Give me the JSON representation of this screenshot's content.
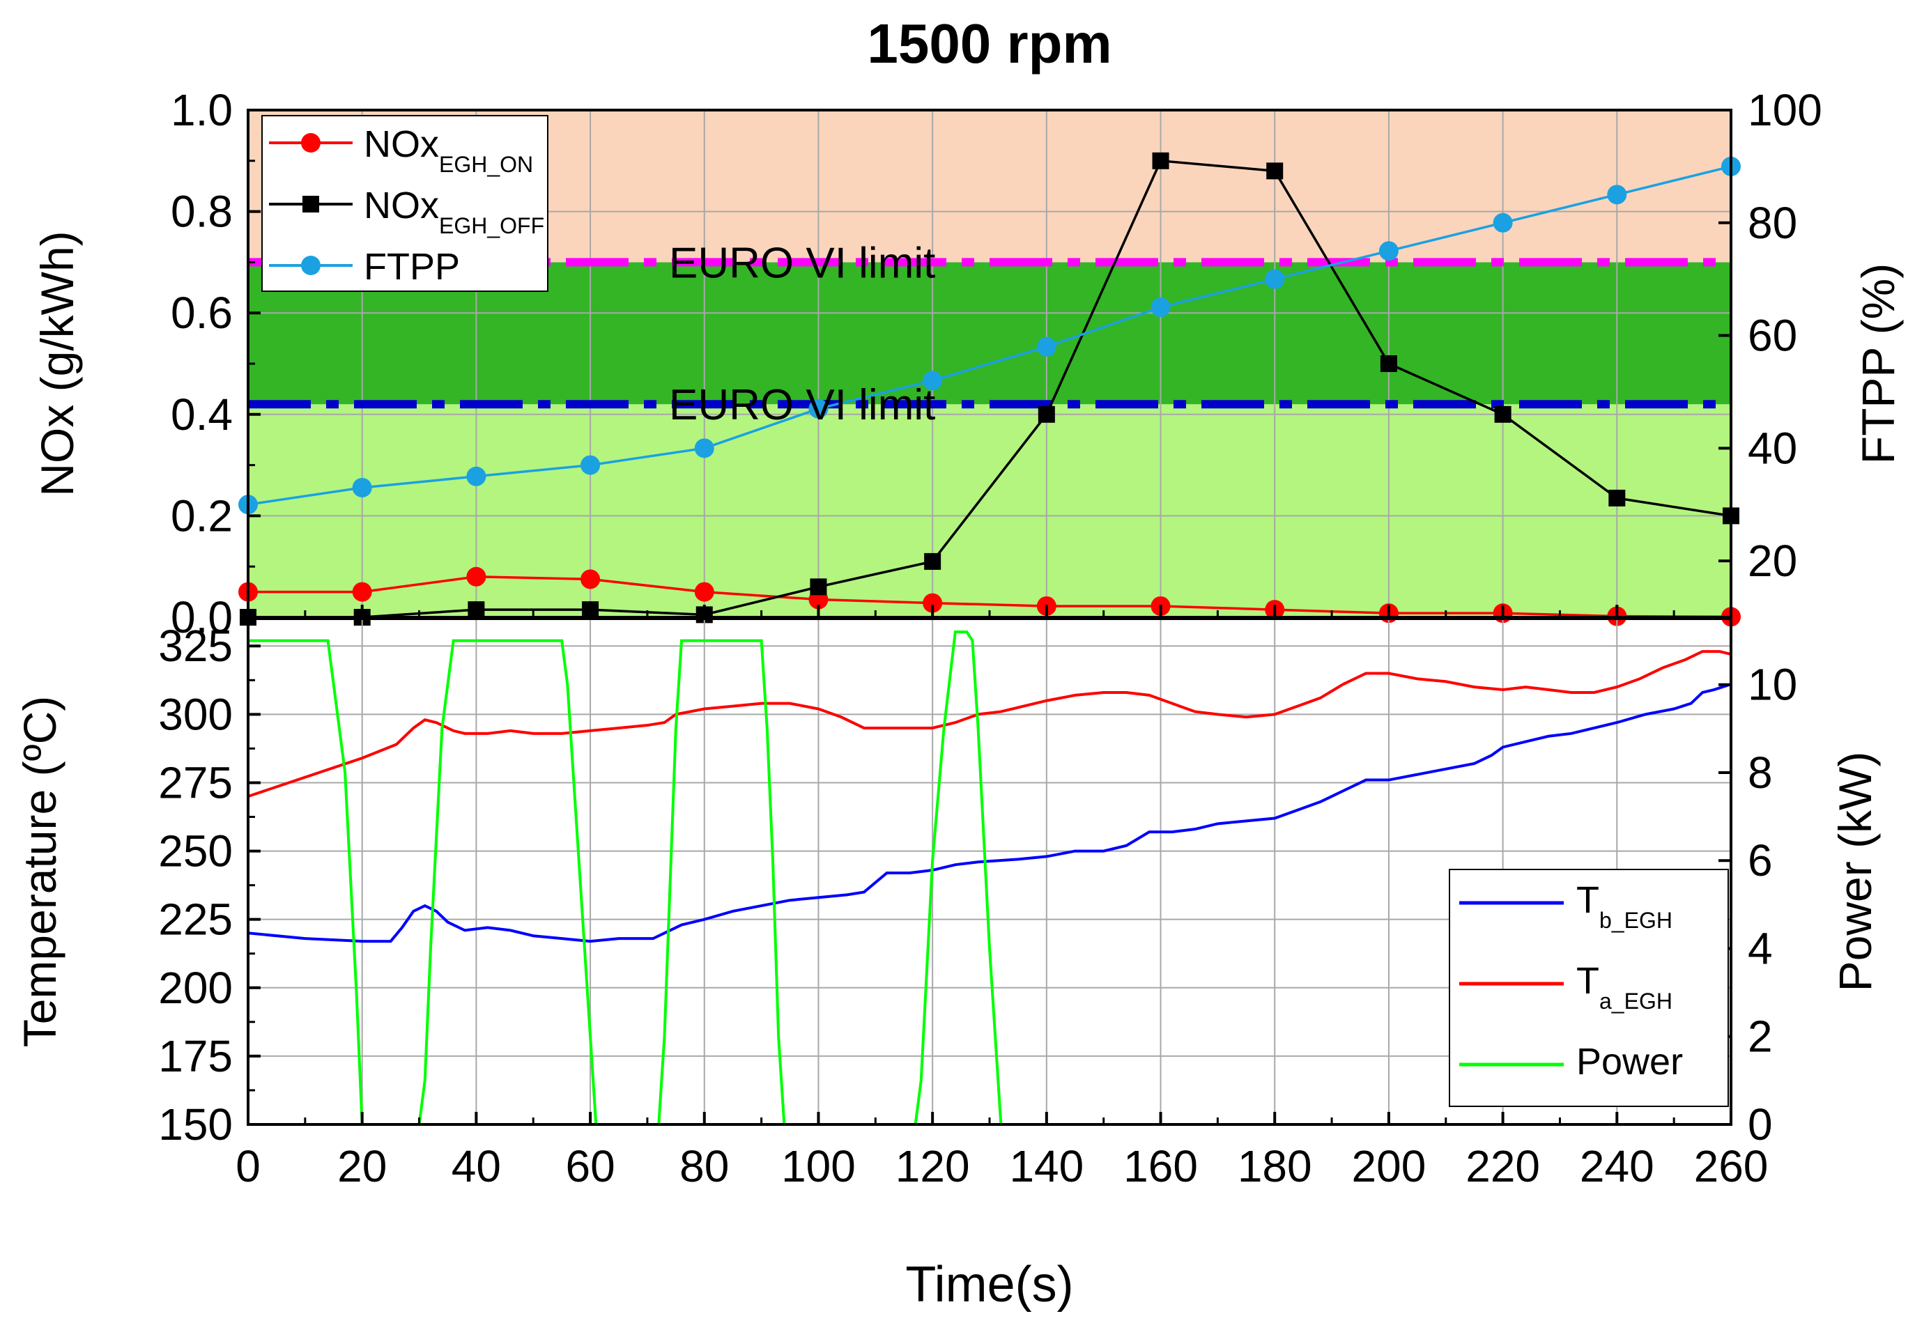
{
  "title": "1500 rpm",
  "x_axis": {
    "label": "Time(s)",
    "range": [
      0,
      260
    ],
    "ticks": [
      0,
      20,
      40,
      60,
      80,
      100,
      120,
      140,
      160,
      180,
      200,
      220,
      240,
      260
    ]
  },
  "chart_data": [
    {
      "type": "line",
      "panel": "top",
      "x": [
        0,
        20,
        40,
        60,
        80,
        100,
        120,
        140,
        160,
        180,
        200,
        220,
        240,
        260
      ],
      "left_axis": {
        "label": "NOx (g/kWh)",
        "range": [
          0,
          1.0
        ],
        "ticks": [
          0.0,
          0.2,
          0.4,
          0.6,
          0.8,
          1.0
        ],
        "tick_labels": [
          "0.0",
          "0.2",
          "0.4",
          "0.6",
          "0.8",
          "1.0"
        ]
      },
      "right_axis": {
        "label": "FTPP (%)",
        "range": [
          10,
          100
        ],
        "ticks": [
          20,
          40,
          60,
          80,
          100
        ]
      },
      "series": [
        {
          "name_main": "NOx",
          "name_sub": "EGH_ON",
          "axis": "left",
          "marker": "circle",
          "color": "#ff0000",
          "values": [
            0.05,
            0.05,
            0.08,
            0.075,
            0.05,
            0.035,
            0.028,
            0.022,
            0.022,
            0.015,
            0.008,
            0.008,
            0.002,
            0.001
          ]
        },
        {
          "name_main": "NOx",
          "name_sub": "EGH_OFF",
          "axis": "left",
          "marker": "square",
          "color": "#000000",
          "values": [
            0.0,
            0.0,
            0.015,
            0.015,
            0.005,
            0.06,
            0.11,
            0.4,
            0.9,
            0.88,
            0.5,
            0.4,
            0.235,
            0.2
          ]
        },
        {
          "name_main": "FTPP",
          "name_sub": "",
          "axis": "right",
          "marker": "circle",
          "color": "#1ba1e2",
          "values": [
            30,
            33,
            35,
            37,
            40,
            47,
            52,
            58,
            65,
            70,
            75,
            80,
            85,
            90
          ]
        }
      ],
      "limits": [
        {
          "label": "EURO VI limit",
          "value": 0.7,
          "color": "#ff00ff"
        },
        {
          "label": "EURO VI limit",
          "value": 0.42,
          "color": "#0000cc"
        }
      ],
      "bands": [
        {
          "from": 0.0,
          "to": 0.42,
          "color": "#b3f57f"
        },
        {
          "from": 0.42,
          "to": 0.7,
          "color": "#33b526"
        },
        {
          "from": 0.7,
          "to": 1.0,
          "color": "#fad5bc"
        }
      ]
    },
    {
      "type": "line",
      "panel": "bottom",
      "left_axis": {
        "label": "Temperature (ºC)",
        "range": [
          150,
          335
        ],
        "ticks": [
          150,
          175,
          200,
          225,
          250,
          275,
          300,
          325
        ]
      },
      "right_axis": {
        "label": "Power (kW)",
        "range": [
          0,
          11.5
        ],
        "ticks": [
          0,
          2,
          4,
          6,
          8,
          10
        ]
      },
      "series": [
        {
          "name_main": "T",
          "name_sub": "b_EGH",
          "axis": "left",
          "color": "#0000ff",
          "points": [
            [
              0,
              220
            ],
            [
              10,
              218
            ],
            [
              20,
              217
            ],
            [
              25,
              217
            ],
            [
              27,
              222
            ],
            [
              29,
              228
            ],
            [
              31,
              230
            ],
            [
              33,
              228
            ],
            [
              35,
              224
            ],
            [
              38,
              221
            ],
            [
              42,
              222
            ],
            [
              46,
              221
            ],
            [
              50,
              219
            ],
            [
              55,
              218
            ],
            [
              60,
              217
            ],
            [
              65,
              218
            ],
            [
              71,
              218
            ],
            [
              73,
              220
            ],
            [
              76,
              223
            ],
            [
              80,
              225
            ],
            [
              85,
              228
            ],
            [
              90,
              230
            ],
            [
              95,
              232
            ],
            [
              100,
              233
            ],
            [
              105,
              234
            ],
            [
              108,
              235
            ],
            [
              112,
              242
            ],
            [
              116,
              242
            ],
            [
              120,
              243
            ],
            [
              124,
              245
            ],
            [
              128,
              246
            ],
            [
              135,
              247
            ],
            [
              140,
              248
            ],
            [
              145,
              250
            ],
            [
              150,
              250
            ],
            [
              154,
              252
            ],
            [
              158,
              257
            ],
            [
              162,
              257
            ],
            [
              166,
              258
            ],
            [
              170,
              260
            ],
            [
              175,
              261
            ],
            [
              180,
              262
            ],
            [
              184,
              265
            ],
            [
              188,
              268
            ],
            [
              192,
              272
            ],
            [
              196,
              276
            ],
            [
              200,
              276
            ],
            [
              205,
              278
            ],
            [
              210,
              280
            ],
            [
              215,
              282
            ],
            [
              218,
              285
            ],
            [
              220,
              288
            ],
            [
              224,
              290
            ],
            [
              228,
              292
            ],
            [
              232,
              293
            ],
            [
              236,
              295
            ],
            [
              240,
              297
            ],
            [
              245,
              300
            ],
            [
              250,
              302
            ],
            [
              253,
              304
            ],
            [
              255,
              308
            ],
            [
              257,
              309
            ],
            [
              260,
              311
            ]
          ]
        },
        {
          "name_main": "T",
          "name_sub": "a_EGH",
          "axis": "left",
          "color": "#ff0000",
          "points": [
            [
              0,
              270
            ],
            [
              10,
              277
            ],
            [
              20,
              284
            ],
            [
              26,
              289
            ],
            [
              29,
              295
            ],
            [
              31,
              298
            ],
            [
              33,
              297
            ],
            [
              36,
              294
            ],
            [
              38,
              293
            ],
            [
              42,
              293
            ],
            [
              46,
              294
            ],
            [
              50,
              293
            ],
            [
              55,
              293
            ],
            [
              60,
              294
            ],
            [
              65,
              295
            ],
            [
              70,
              296
            ],
            [
              73,
              297
            ],
            [
              75,
              300
            ],
            [
              80,
              302
            ],
            [
              85,
              303
            ],
            [
              90,
              304
            ],
            [
              95,
              304
            ],
            [
              100,
              302
            ],
            [
              104,
              299
            ],
            [
              108,
              295
            ],
            [
              112,
              295
            ],
            [
              116,
              295
            ],
            [
              120,
              295
            ],
            [
              124,
              297
            ],
            [
              128,
              300
            ],
            [
              132,
              301
            ],
            [
              136,
              303
            ],
            [
              140,
              305
            ],
            [
              145,
              307
            ],
            [
              150,
              308
            ],
            [
              154,
              308
            ],
            [
              158,
              307
            ],
            [
              162,
              304
            ],
            [
              166,
              301
            ],
            [
              170,
              300
            ],
            [
              175,
              299
            ],
            [
              180,
              300
            ],
            [
              184,
              303
            ],
            [
              188,
              306
            ],
            [
              192,
              311
            ],
            [
              196,
              315
            ],
            [
              200,
              315
            ],
            [
              205,
              313
            ],
            [
              210,
              312
            ],
            [
              215,
              310
            ],
            [
              220,
              309
            ],
            [
              224,
              310
            ],
            [
              228,
              309
            ],
            [
              232,
              308
            ],
            [
              236,
              308
            ],
            [
              240,
              310
            ],
            [
              244,
              313
            ],
            [
              248,
              317
            ],
            [
              252,
              320
            ],
            [
              255,
              323
            ],
            [
              258,
              323
            ],
            [
              260,
              322
            ]
          ]
        },
        {
          "name_main": "Power",
          "name_sub": "",
          "axis": "right",
          "color": "#00ff00",
          "points": [
            [
              0,
              11
            ],
            [
              14,
              11
            ],
            [
              15,
              10
            ],
            [
              17,
              8
            ],
            [
              19,
              3
            ],
            [
              20,
              0
            ],
            [
              30,
              0
            ],
            [
              31,
              1
            ],
            [
              32,
              4
            ],
            [
              34,
              9
            ],
            [
              36,
              11
            ],
            [
              55,
              11
            ],
            [
              56,
              10
            ],
            [
              58,
              6
            ],
            [
              60,
              2
            ],
            [
              61,
              0
            ],
            [
              72,
              0
            ],
            [
              73,
              2
            ],
            [
              75,
              9
            ],
            [
              76,
              11
            ],
            [
              90,
              11
            ],
            [
              91,
              9
            ],
            [
              92,
              6
            ],
            [
              93,
              2
            ],
            [
              94,
              0
            ],
            [
              117,
              0
            ],
            [
              118,
              1
            ],
            [
              120,
              6
            ],
            [
              122,
              9
            ],
            [
              124,
              11.2
            ],
            [
              126,
              11.2
            ],
            [
              127,
              11
            ],
            [
              128,
              9
            ],
            [
              130,
              4
            ],
            [
              132,
              0
            ],
            [
              260,
              0
            ]
          ]
        }
      ]
    }
  ]
}
